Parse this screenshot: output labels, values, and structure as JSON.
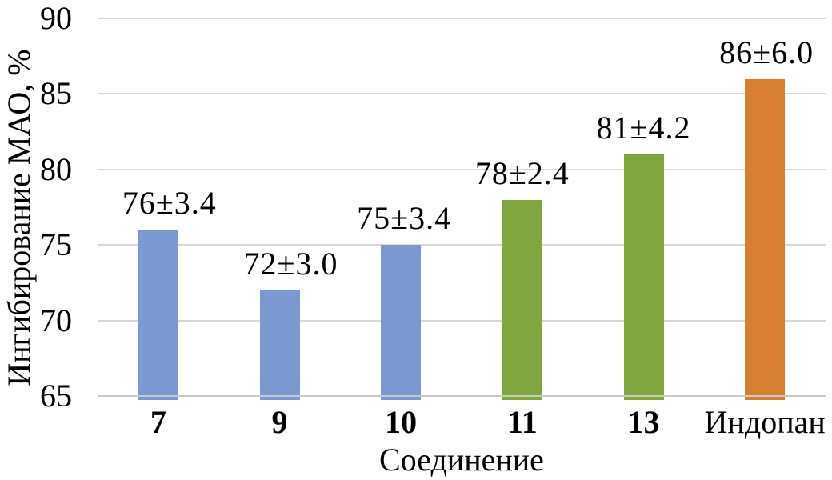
{
  "chart_data": {
    "type": "bar",
    "xlabel": "Соединение",
    "ylabel": "Ингибирование МАО, %",
    "categories": [
      "7",
      "9",
      "10",
      "11",
      "13",
      "Индопан"
    ],
    "values": [
      76,
      72,
      75,
      78,
      81,
      86
    ],
    "errors": [
      3.4,
      3.0,
      3.4,
      2.4,
      4.2,
      6.0
    ],
    "value_labels": [
      "76±3.4",
      "72±3.0",
      "75±3.4",
      "78±2.4",
      "81±4.2",
      "86±6.0"
    ],
    "bar_colors": [
      "#7A99D0",
      "#7A99D0",
      "#7A99D0",
      "#7FA63C",
      "#7FA63C",
      "#D6802F"
    ],
    "category_bold": [
      true,
      true,
      true,
      true,
      true,
      false
    ],
    "ylim": [
      65,
      90
    ],
    "yticks": [
      65,
      70,
      75,
      80,
      85,
      90
    ],
    "grid": true,
    "gridline_color": "#D9D9D9",
    "axisline_color": "#C9C9C9",
    "text_color": "#000000",
    "legend": "none"
  }
}
